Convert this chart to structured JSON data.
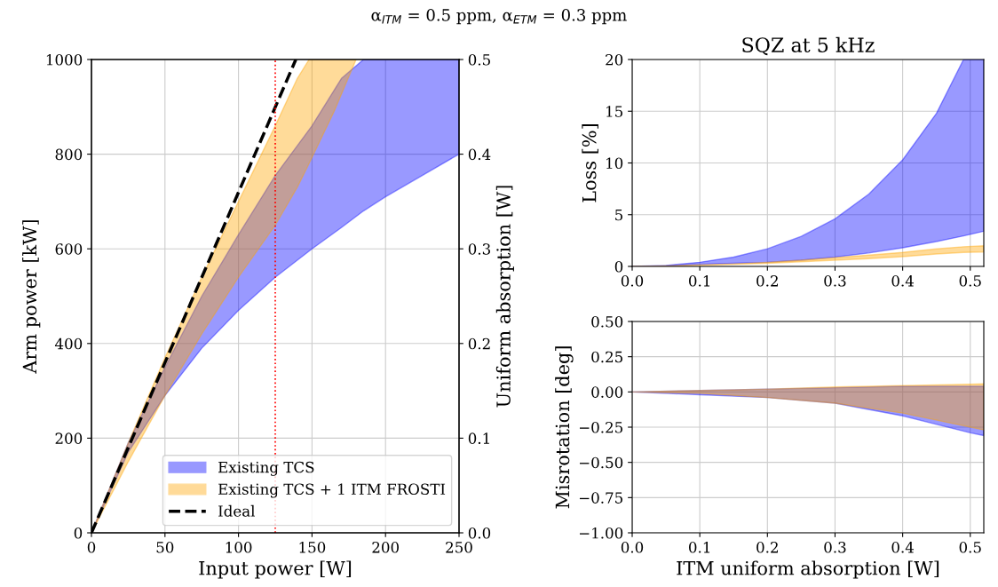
{
  "chart_data": [
    {
      "type": "area",
      "xlabel": "Input power [W]",
      "ylabel": "Arm power [kW]",
      "y2label": "Uniform absorption [W]",
      "annotations": [
        "α$_{ITM}$ = 0.5 ppm, α$_{ETM}$ = 0.3 ppm"
      ],
      "xlim": [
        0,
        250
      ],
      "xticks": [
        0,
        50,
        100,
        150,
        200,
        250
      ],
      "ylim": [
        0,
        1000
      ],
      "yticks": [
        0,
        200,
        400,
        600,
        800,
        1000
      ],
      "y2lim": [
        0,
        0.5
      ],
      "y2ticks": [
        {
          "value": 0,
          "label": "0.0"
        },
        0.1,
        0.2,
        0.3,
        0.4,
        0.5
      ],
      "grid": true,
      "legend": "bottom right",
      "ref_lines": [
        {
          "axis": "x",
          "value": 125,
          "color": "#ff0000",
          "line_style": "dotted"
        }
      ],
      "series": [
        {
          "name": "Existing TCS",
          "color": "#0000ff",
          "x": [
            0,
            25,
            50,
            75,
            100,
            125,
            150,
            170,
            185,
            200,
            225,
            250
          ],
          "values": [
            null,
            null,
            null,
            null,
            null,
            null,
            null,
            null,
            null,
            null,
            null,
            null
          ],
          "lower": [
            0,
            170,
            290,
            390,
            470,
            540,
            600,
            645,
            680,
            710,
            755,
            800
          ],
          "upper": [
            0,
            190,
            350,
            500,
            630,
            755,
            860,
            960,
            1000,
            1000,
            1000,
            1000
          ]
        },
        {
          "name": "Existing TCS + 1 ITM FROSTI",
          "color": "#ffa500",
          "x": [
            0,
            25,
            50,
            75,
            100,
            125,
            140,
            148,
            165,
            180
          ],
          "values": [
            null,
            null,
            null,
            null,
            null,
            null,
            null,
            null,
            null,
            null
          ],
          "lower": [
            0,
            150,
            290,
            420,
            540,
            650,
            730,
            780,
            890,
            1000
          ],
          "upper": [
            0,
            190,
            370,
            540,
            700,
            860,
            960,
            1000,
            1000,
            1000
          ]
        },
        {
          "name": "Ideal",
          "type": "line",
          "color": "#000000",
          "line_style": "dashed",
          "x": [
            0,
            139
          ],
          "values": [
            0,
            1000
          ]
        }
      ]
    },
    {
      "type": "area",
      "title": "SQZ at 5 kHz",
      "ylabel": "Loss [%]",
      "xlim": [
        0,
        0.52
      ],
      "xticks": [
        {
          "value": 0,
          "label": "0.0"
        },
        0.1,
        0.2,
        0.3,
        0.4,
        0.5
      ],
      "ylim": [
        0,
        20
      ],
      "yticks": [
        0,
        5,
        10,
        15,
        20
      ],
      "grid": true,
      "series": [
        {
          "color": "#0000ff",
          "x": [
            0,
            0.05,
            0.1,
            0.15,
            0.2,
            0.25,
            0.3,
            0.35,
            0.4,
            0.45,
            0.49,
            0.52
          ],
          "values": [
            null,
            null,
            null,
            null,
            null,
            null,
            null,
            null,
            null,
            null,
            null,
            null
          ],
          "lower": [
            0,
            0.05,
            0.2,
            0.3,
            0.4,
            0.6,
            0.9,
            1.3,
            1.8,
            2.4,
            2.95,
            3.4
          ],
          "upper": [
            0,
            0.1,
            0.4,
            0.9,
            1.7,
            2.9,
            4.6,
            7.0,
            10.3,
            14.8,
            20,
            20
          ]
        },
        {
          "color": "#ffa500",
          "x": [
            0,
            0.05,
            0.1,
            0.15,
            0.2,
            0.25,
            0.3,
            0.35,
            0.4,
            0.45,
            0.49,
            0.52
          ],
          "values": [
            null,
            null,
            null,
            null,
            null,
            null,
            null,
            null,
            null,
            null,
            null,
            null
          ],
          "lower": [
            0,
            0,
            0.1,
            0.2,
            0.3,
            0.45,
            0.6,
            0.75,
            0.95,
            1.2,
            1.35,
            1.4
          ],
          "upper": [
            0,
            0.05,
            0.15,
            0.25,
            0.4,
            0.6,
            0.85,
            1.1,
            1.35,
            1.7,
            1.9,
            2.0
          ]
        }
      ]
    },
    {
      "type": "area",
      "xlabel": "ITM uniform absorption [W]",
      "ylabel": "Misrotation [deg]",
      "xlim": [
        0,
        0.52
      ],
      "xticks": [
        {
          "value": 0,
          "label": "0.0"
        },
        0.1,
        0.2,
        0.3,
        0.4,
        0.5
      ],
      "ylim": [
        -1,
        0.5
      ],
      "yticks": [
        {
          "value": -1,
          "label": "−1.00"
        },
        {
          "value": -0.75,
          "label": "−0.75"
        },
        {
          "value": -0.5,
          "label": "−0.50"
        },
        {
          "value": -0.25,
          "label": "−0.25"
        },
        {
          "value": 0,
          "label": "0.00"
        },
        0.25,
        {
          "value": 0.5,
          "label": "0.50"
        }
      ],
      "grid": true,
      "series": [
        {
          "color": "#0000ff",
          "x": [
            0,
            0.1,
            0.2,
            0.3,
            0.4,
            0.5,
            0.52
          ],
          "values": [
            null,
            null,
            null,
            null,
            null,
            null,
            null
          ],
          "lower": [
            0,
            -0.02,
            -0.04,
            -0.08,
            -0.17,
            -0.29,
            -0.31
          ],
          "upper": [
            0,
            0.01,
            0.02,
            0.03,
            0.04,
            0.04,
            0.04
          ]
        },
        {
          "color": "#ffa500",
          "x": [
            0,
            0.1,
            0.2,
            0.3,
            0.4,
            0.5,
            0.52
          ],
          "values": [
            null,
            null,
            null,
            null,
            null,
            null,
            null
          ],
          "lower": [
            0,
            -0.01,
            -0.04,
            -0.08,
            -0.15,
            -0.25,
            -0.27
          ],
          "upper": [
            0,
            0.01,
            0.02,
            0.035,
            0.045,
            0.055,
            0.057
          ]
        }
      ]
    }
  ]
}
